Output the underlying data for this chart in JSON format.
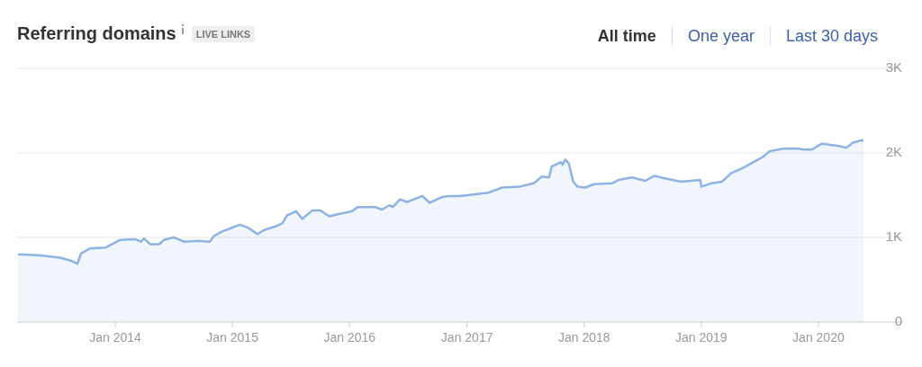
{
  "chart_data": {
    "type": "area",
    "title": "Referring domains",
    "subtitle": "LIVE LINKS",
    "annotations": [
      "All time",
      "One year",
      "Last 30 days"
    ],
    "x": [
      "2013-03-04",
      "2013-05-07",
      "2013-07-14",
      "2013-08-19",
      "2013-09-05",
      "2013-09-16",
      "2013-10-14",
      "2013-12-01",
      "2014-01-15",
      "2014-03-03",
      "2014-03-22",
      "2014-03-31",
      "2014-04-20",
      "2014-05-18",
      "2014-06-01",
      "2014-07-02",
      "2014-08-04",
      "2014-09-16",
      "2014-10-22",
      "2014-11-05",
      "2014-11-30",
      "2015-01-09",
      "2015-01-26",
      "2015-02-21",
      "2015-03-20",
      "2015-04-11",
      "2015-05-15",
      "2015-06-06",
      "2015-06-20",
      "2015-07-18",
      "2015-08-07",
      "2015-09-07",
      "2015-10-02",
      "2015-10-30",
      "2015-11-30",
      "2016-01-09",
      "2016-01-26",
      "2016-03-20",
      "2016-04-11",
      "2016-05-04",
      "2016-05-15",
      "2016-06-06",
      "2016-06-29",
      "2016-08-15",
      "2016-09-07",
      "2016-10-16",
      "2016-11-08",
      "2016-12-06",
      "2017-01-03",
      "2017-03-09",
      "2017-04-21",
      "2017-06-13",
      "2017-07-28",
      "2017-08-22",
      "2017-09-14",
      "2017-09-22",
      "2017-10-20",
      "2017-10-26",
      "2017-11-03",
      "2017-11-14",
      "2017-11-28",
      "2017-12-12",
      "2018-01-04",
      "2018-02-01",
      "2018-03-29",
      "2018-04-18",
      "2018-05-30",
      "2018-07-11",
      "2018-08-08",
      "2018-09-08",
      "2018-10-31",
      "2018-12-29",
      "2019-01-01",
      "2019-02-01",
      "2019-03-07",
      "2019-04-04",
      "2019-05-10",
      "2019-07-11",
      "2019-08-02",
      "2019-09-14",
      "2019-10-31",
      "2019-11-14",
      "2019-12-12",
      "2020-01-12",
      "2020-03-08",
      "2020-03-28",
      "2020-04-17",
      "2020-05-15",
      "2020-05-20"
    ],
    "series": [
      {
        "color": "#8db3e6",
        "values": [
          800,
          790,
          760,
          720,
          690,
          810,
          870,
          880,
          970,
          980,
          950,
          990,
          920,
          920,
          970,
          1000,
          950,
          960,
          950,
          1020,
          1070,
          1130,
          1150,
          1110,
          1040,
          1090,
          1130,
          1170,
          1260,
          1310,
          1220,
          1320,
          1320,
          1250,
          1280,
          1310,
          1360,
          1360,
          1330,
          1380,
          1360,
          1450,
          1420,
          1490,
          1410,
          1480,
          1490,
          1490,
          1500,
          1530,
          1590,
          1600,
          1640,
          1720,
          1710,
          1840,
          1890,
          1860,
          1920,
          1880,
          1660,
          1600,
          1590,
          1630,
          1640,
          1680,
          1710,
          1670,
          1730,
          1700,
          1660,
          1680,
          1600,
          1640,
          1660,
          1760,
          1820,
          1950,
          2020,
          2050,
          2050,
          2040,
          2040,
          2110,
          2080,
          2060,
          2120,
          2150,
          2140
        ]
      }
    ],
    "xlim": [
      "2013-03-01",
      "2020-09-21"
    ],
    "xticks": [
      {
        "value": "2014-01-01",
        "label": "Jan 2014"
      },
      {
        "value": "2015-01-01",
        "label": "Jan 2015"
      },
      {
        "value": "2016-01-01",
        "label": "Jan 2016"
      },
      {
        "value": "2017-01-01",
        "label": "Jan 2017"
      },
      {
        "value": "2018-01-01",
        "label": "Jan 2018"
      },
      {
        "value": "2019-01-01",
        "label": "Jan 2019"
      },
      {
        "value": "2020-01-01",
        "label": "Jan 2020"
      }
    ],
    "ylim": [
      0,
      3000
    ],
    "yticks": [
      0,
      {
        "value": 1000,
        "label": "1K"
      },
      {
        "value": 2000,
        "label": "2K"
      },
      {
        "value": 3000,
        "label": "3K"
      }
    ],
    "grid": "y"
  }
}
